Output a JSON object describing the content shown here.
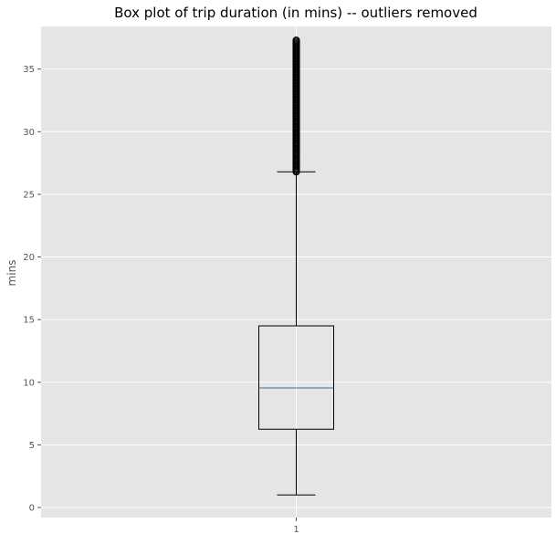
{
  "chart_data": {
    "type": "box",
    "title": "Box plot of trip duration (in mins) -- outliers removed",
    "xlabel": "",
    "ylabel": "mins",
    "categories": [
      "1"
    ],
    "ylim": [
      -0.8,
      38.4
    ],
    "yticks": [
      0,
      5,
      10,
      15,
      20,
      25,
      30,
      35
    ],
    "ytick_labels": [
      "0",
      "5",
      "10",
      "15",
      "20",
      "25",
      "30",
      "35"
    ],
    "grid": true,
    "box": {
      "whisker_low": 1.0,
      "q1": 6.25,
      "median": 9.55,
      "q3": 14.5,
      "whisker_high": 26.8,
      "fliers_range": [
        26.8,
        37.3
      ]
    },
    "colors": {
      "background": "#e5e5e5",
      "grid": "#ffffff",
      "box": "#000000",
      "median": "#1f77b4",
      "flier": "#000000",
      "tick_label": "#555555"
    }
  }
}
